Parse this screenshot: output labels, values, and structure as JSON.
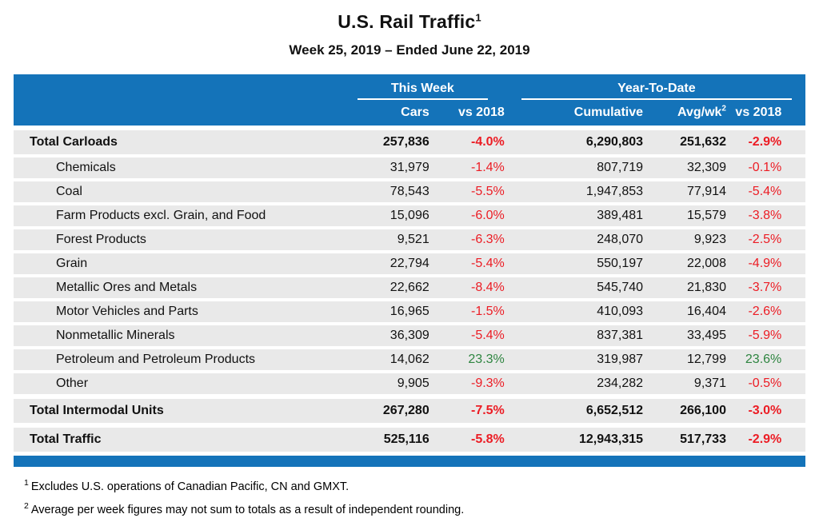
{
  "title": "U.S. Rail Traffic",
  "title_superscript": "1",
  "subtitle": "Week 25, 2019 – Ended June 22, 2019",
  "table": {
    "colors": {
      "header_blue": "#1473B9",
      "row_gray": "#E9E9E9",
      "negative_red": "#EC1C24",
      "positive_green": "#2E8540"
    },
    "group_headers": {
      "this_week": "This Week",
      "year_to_date": "Year-To-Date"
    },
    "columns": {
      "cars": "Cars",
      "vs2018_week": "vs 2018",
      "cumulative": "Cumulative",
      "avg_wk": "Avg/wk",
      "avg_wk_superscript": "2",
      "vs2018_ytd": "vs 2018"
    },
    "rows": [
      {
        "label": "Total Carloads",
        "style": "total",
        "cars": "257,836",
        "vs_week": "-4.0%",
        "cumulative": "6,290,803",
        "avg_wk": "251,632",
        "vs_ytd": "-2.9%"
      },
      {
        "label": "Chemicals",
        "style": "sub",
        "cars": "31,979",
        "vs_week": "-1.4%",
        "cumulative": "807,719",
        "avg_wk": "32,309",
        "vs_ytd": "-0.1%"
      },
      {
        "label": "Coal",
        "style": "sub",
        "cars": "78,543",
        "vs_week": "-5.5%",
        "cumulative": "1,947,853",
        "avg_wk": "77,914",
        "vs_ytd": "-5.4%"
      },
      {
        "label": "Farm Products excl. Grain, and Food",
        "style": "sub",
        "cars": "15,096",
        "vs_week": "-6.0%",
        "cumulative": "389,481",
        "avg_wk": "15,579",
        "vs_ytd": "-3.8%"
      },
      {
        "label": "Forest Products",
        "style": "sub",
        "cars": "9,521",
        "vs_week": "-6.3%",
        "cumulative": "248,070",
        "avg_wk": "9,923",
        "vs_ytd": "-2.5%"
      },
      {
        "label": "Grain",
        "style": "sub",
        "cars": "22,794",
        "vs_week": "-5.4%",
        "cumulative": "550,197",
        "avg_wk": "22,008",
        "vs_ytd": "-4.9%"
      },
      {
        "label": "Metallic Ores and Metals",
        "style": "sub",
        "cars": "22,662",
        "vs_week": "-8.4%",
        "cumulative": "545,740",
        "avg_wk": "21,830",
        "vs_ytd": "-3.7%"
      },
      {
        "label": "Motor Vehicles and Parts",
        "style": "sub",
        "cars": "16,965",
        "vs_week": "-1.5%",
        "cumulative": "410,093",
        "avg_wk": "16,404",
        "vs_ytd": "-2.6%"
      },
      {
        "label": "Nonmetallic Minerals",
        "style": "sub",
        "cars": "36,309",
        "vs_week": "-5.4%",
        "cumulative": "837,381",
        "avg_wk": "33,495",
        "vs_ytd": "-5.9%"
      },
      {
        "label": "Petroleum and Petroleum Products",
        "style": "sub",
        "cars": "14,062",
        "vs_week": "23.3%",
        "cumulative": "319,987",
        "avg_wk": "12,799",
        "vs_ytd": "23.6%"
      },
      {
        "label": "Other",
        "style": "sub",
        "cars": "9,905",
        "vs_week": "-9.3%",
        "cumulative": "234,282",
        "avg_wk": "9,371",
        "vs_ytd": "-0.5%"
      },
      {
        "label": "Total Intermodal Units",
        "style": "total",
        "cars": "267,280",
        "vs_week": "-7.5%",
        "cumulative": "6,652,512",
        "avg_wk": "266,100",
        "vs_ytd": "-3.0%"
      },
      {
        "label": "Total Traffic",
        "style": "total",
        "cars": "525,116",
        "vs_week": "-5.8%",
        "cumulative": "12,943,315",
        "avg_wk": "517,733",
        "vs_ytd": "-2.9%"
      }
    ]
  },
  "footnotes": [
    {
      "marker": "1",
      "text": "Excludes U.S. operations of Canadian Pacific, CN and GMXT."
    },
    {
      "marker": "2",
      "text": "Average per week figures may not sum to totals as a result of independent rounding."
    }
  ]
}
